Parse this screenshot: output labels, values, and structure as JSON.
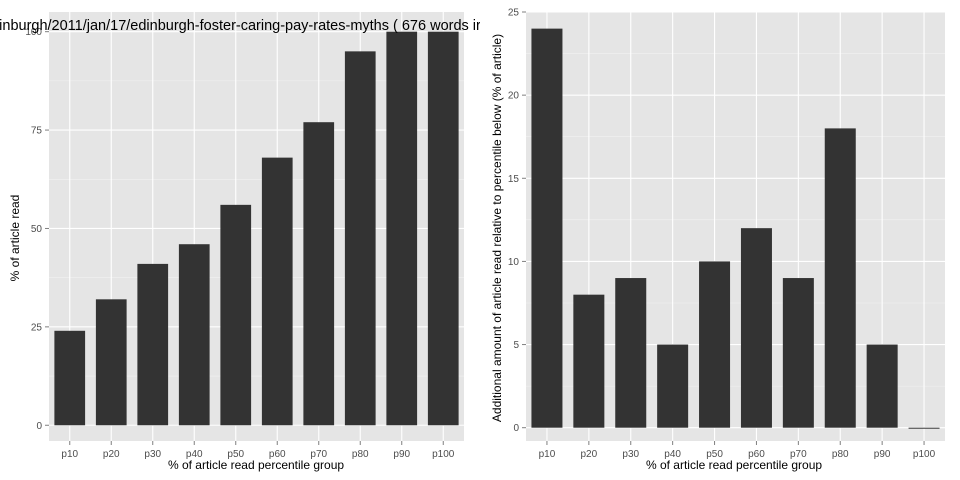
{
  "chart_data": [
    {
      "type": "bar",
      "title": "inburgh/2011/jan/17/edinburgh-foster-caring-pay-rates-myths ( 676 words ir",
      "xlabel": "% of article read percentile group",
      "ylabel": "% of article read",
      "categories": [
        "p10",
        "p20",
        "p30",
        "p40",
        "p50",
        "p60",
        "p70",
        "p80",
        "p90",
        "p100"
      ],
      "values": [
        24,
        32,
        41,
        46,
        56,
        68,
        77,
        95,
        100,
        100
      ],
      "ylim": [
        -4,
        105
      ],
      "yticks": [
        0,
        25,
        50,
        75,
        100
      ],
      "ytick_labels": [
        "0",
        "25",
        "50",
        "75",
        "100"
      ],
      "grid": true,
      "bar_color": "#333333",
      "panel_color": "#e5e5e5",
      "grid_color": "#ffffff"
    },
    {
      "type": "bar",
      "title": "",
      "xlabel": "% of article read percentile group",
      "ylabel": "Additional amount of article read relative to percentile below (% of article)",
      "categories": [
        "p10",
        "p20",
        "p30",
        "p40",
        "p50",
        "p60",
        "p70",
        "p80",
        "p90",
        "p100"
      ],
      "values": [
        24,
        8,
        9,
        5,
        10,
        12,
        9,
        18,
        5,
        0
      ],
      "ylim": [
        -0.8,
        25
      ],
      "yticks": [
        0,
        5,
        10,
        15,
        20,
        25
      ],
      "ytick_labels": [
        "0",
        "5",
        "10",
        "15",
        "20",
        "25"
      ],
      "grid": true,
      "bar_color": "#333333",
      "panel_color": "#e5e5e5",
      "grid_color": "#ffffff"
    }
  ]
}
